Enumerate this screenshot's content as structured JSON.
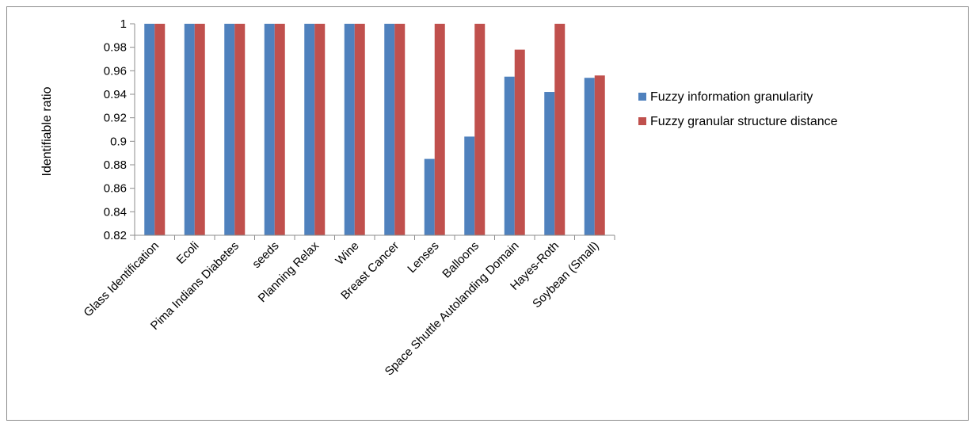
{
  "chart_data": {
    "type": "bar",
    "title": "",
    "xlabel": "",
    "ylabel": "Identifiable ratio",
    "ylim": [
      0.82,
      1.0
    ],
    "yticks": [
      "0.82",
      "0.84",
      "0.86",
      "0.88",
      "0.9",
      "0.92",
      "0.94",
      "0.96",
      "0.98",
      "1"
    ],
    "grid": false,
    "legend_position": "right",
    "categories": [
      "Glass Identification",
      "Ecoli",
      "Pima Indians Diabetes",
      "seeds",
      "Planning Relax",
      "Wine",
      "Breast Cancer",
      "Lenses",
      "Balloons",
      "Space Shuttle Autolanding Domain",
      "Hayes-Roth",
      "Soybean (Small)"
    ],
    "series": [
      {
        "name": "Fuzzy information  granularity",
        "color": "#4f81bd",
        "values": [
          1,
          1,
          1,
          1,
          1,
          1,
          1,
          0.885,
          0.904,
          0.955,
          0.942,
          0.954
        ]
      },
      {
        "name": "Fuzzy granular structure distance",
        "color": "#c0504d",
        "values": [
          1,
          1,
          1,
          1,
          1,
          1,
          1,
          1,
          1,
          0.978,
          1,
          0.956
        ]
      }
    ]
  }
}
